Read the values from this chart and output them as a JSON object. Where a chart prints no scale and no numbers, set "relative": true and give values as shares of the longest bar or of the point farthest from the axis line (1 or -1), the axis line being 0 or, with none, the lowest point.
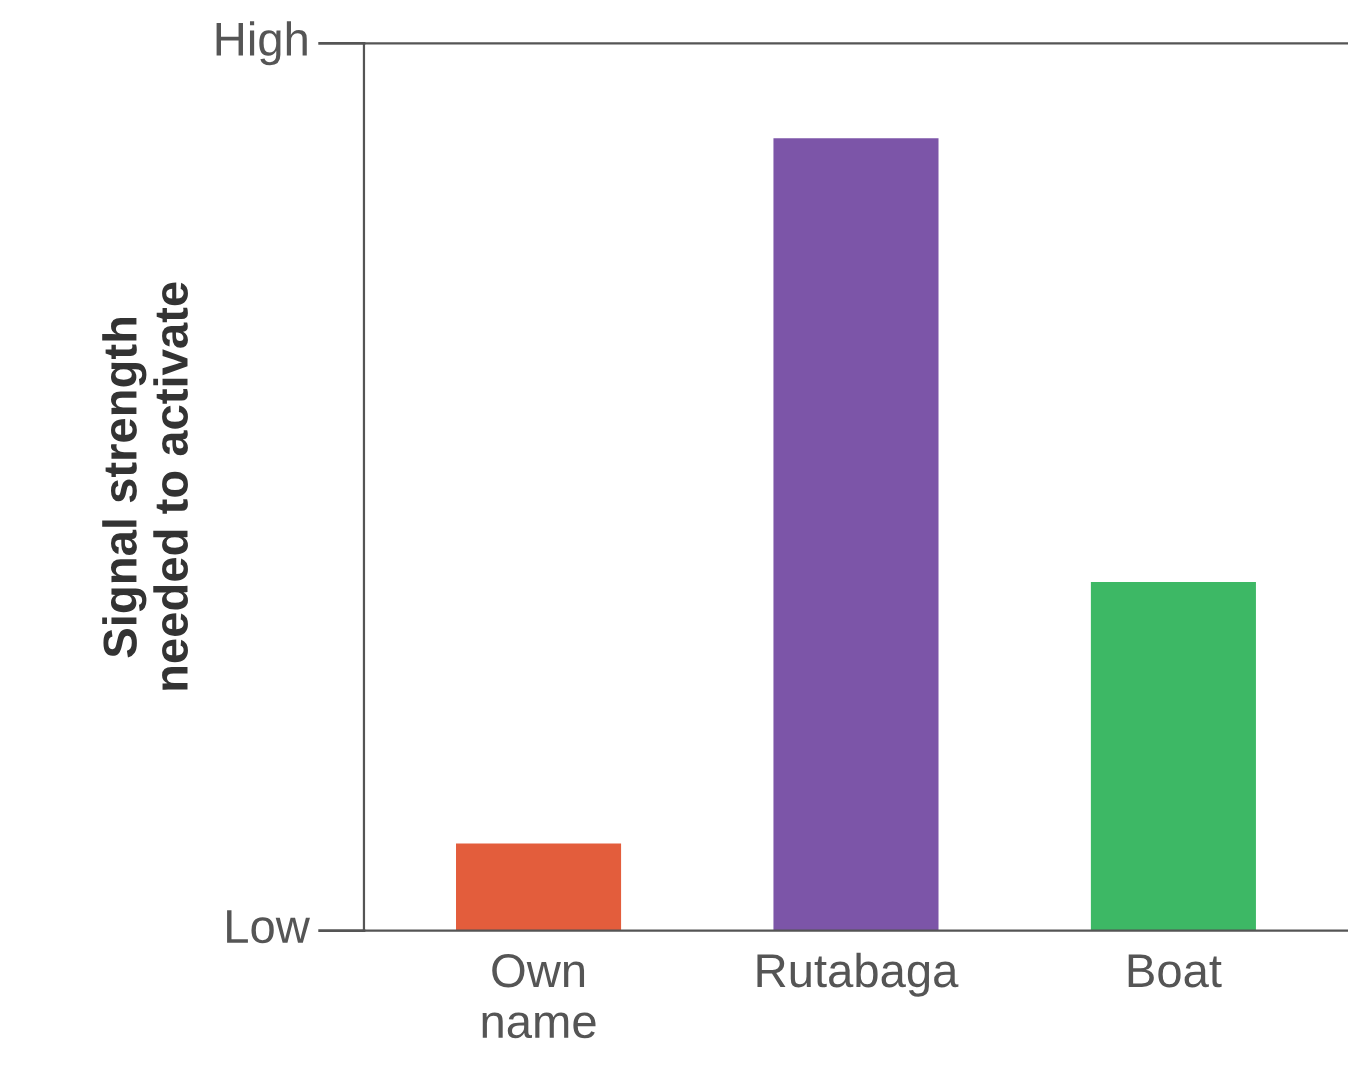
{
  "chart_data": {
    "type": "bar",
    "relative": true,
    "ylabel": "Signal strength\nneeded to activate",
    "categories": [
      "Own\nname",
      "Rutabaga",
      "Boat"
    ],
    "colors": [
      "#e35d3c",
      "#7c55a8",
      "#3db865"
    ],
    "values": [
      0.11,
      1,
      0.44
    ],
    "annotations": [
      "Low",
      "High"
    ],
    "grid": false
  }
}
